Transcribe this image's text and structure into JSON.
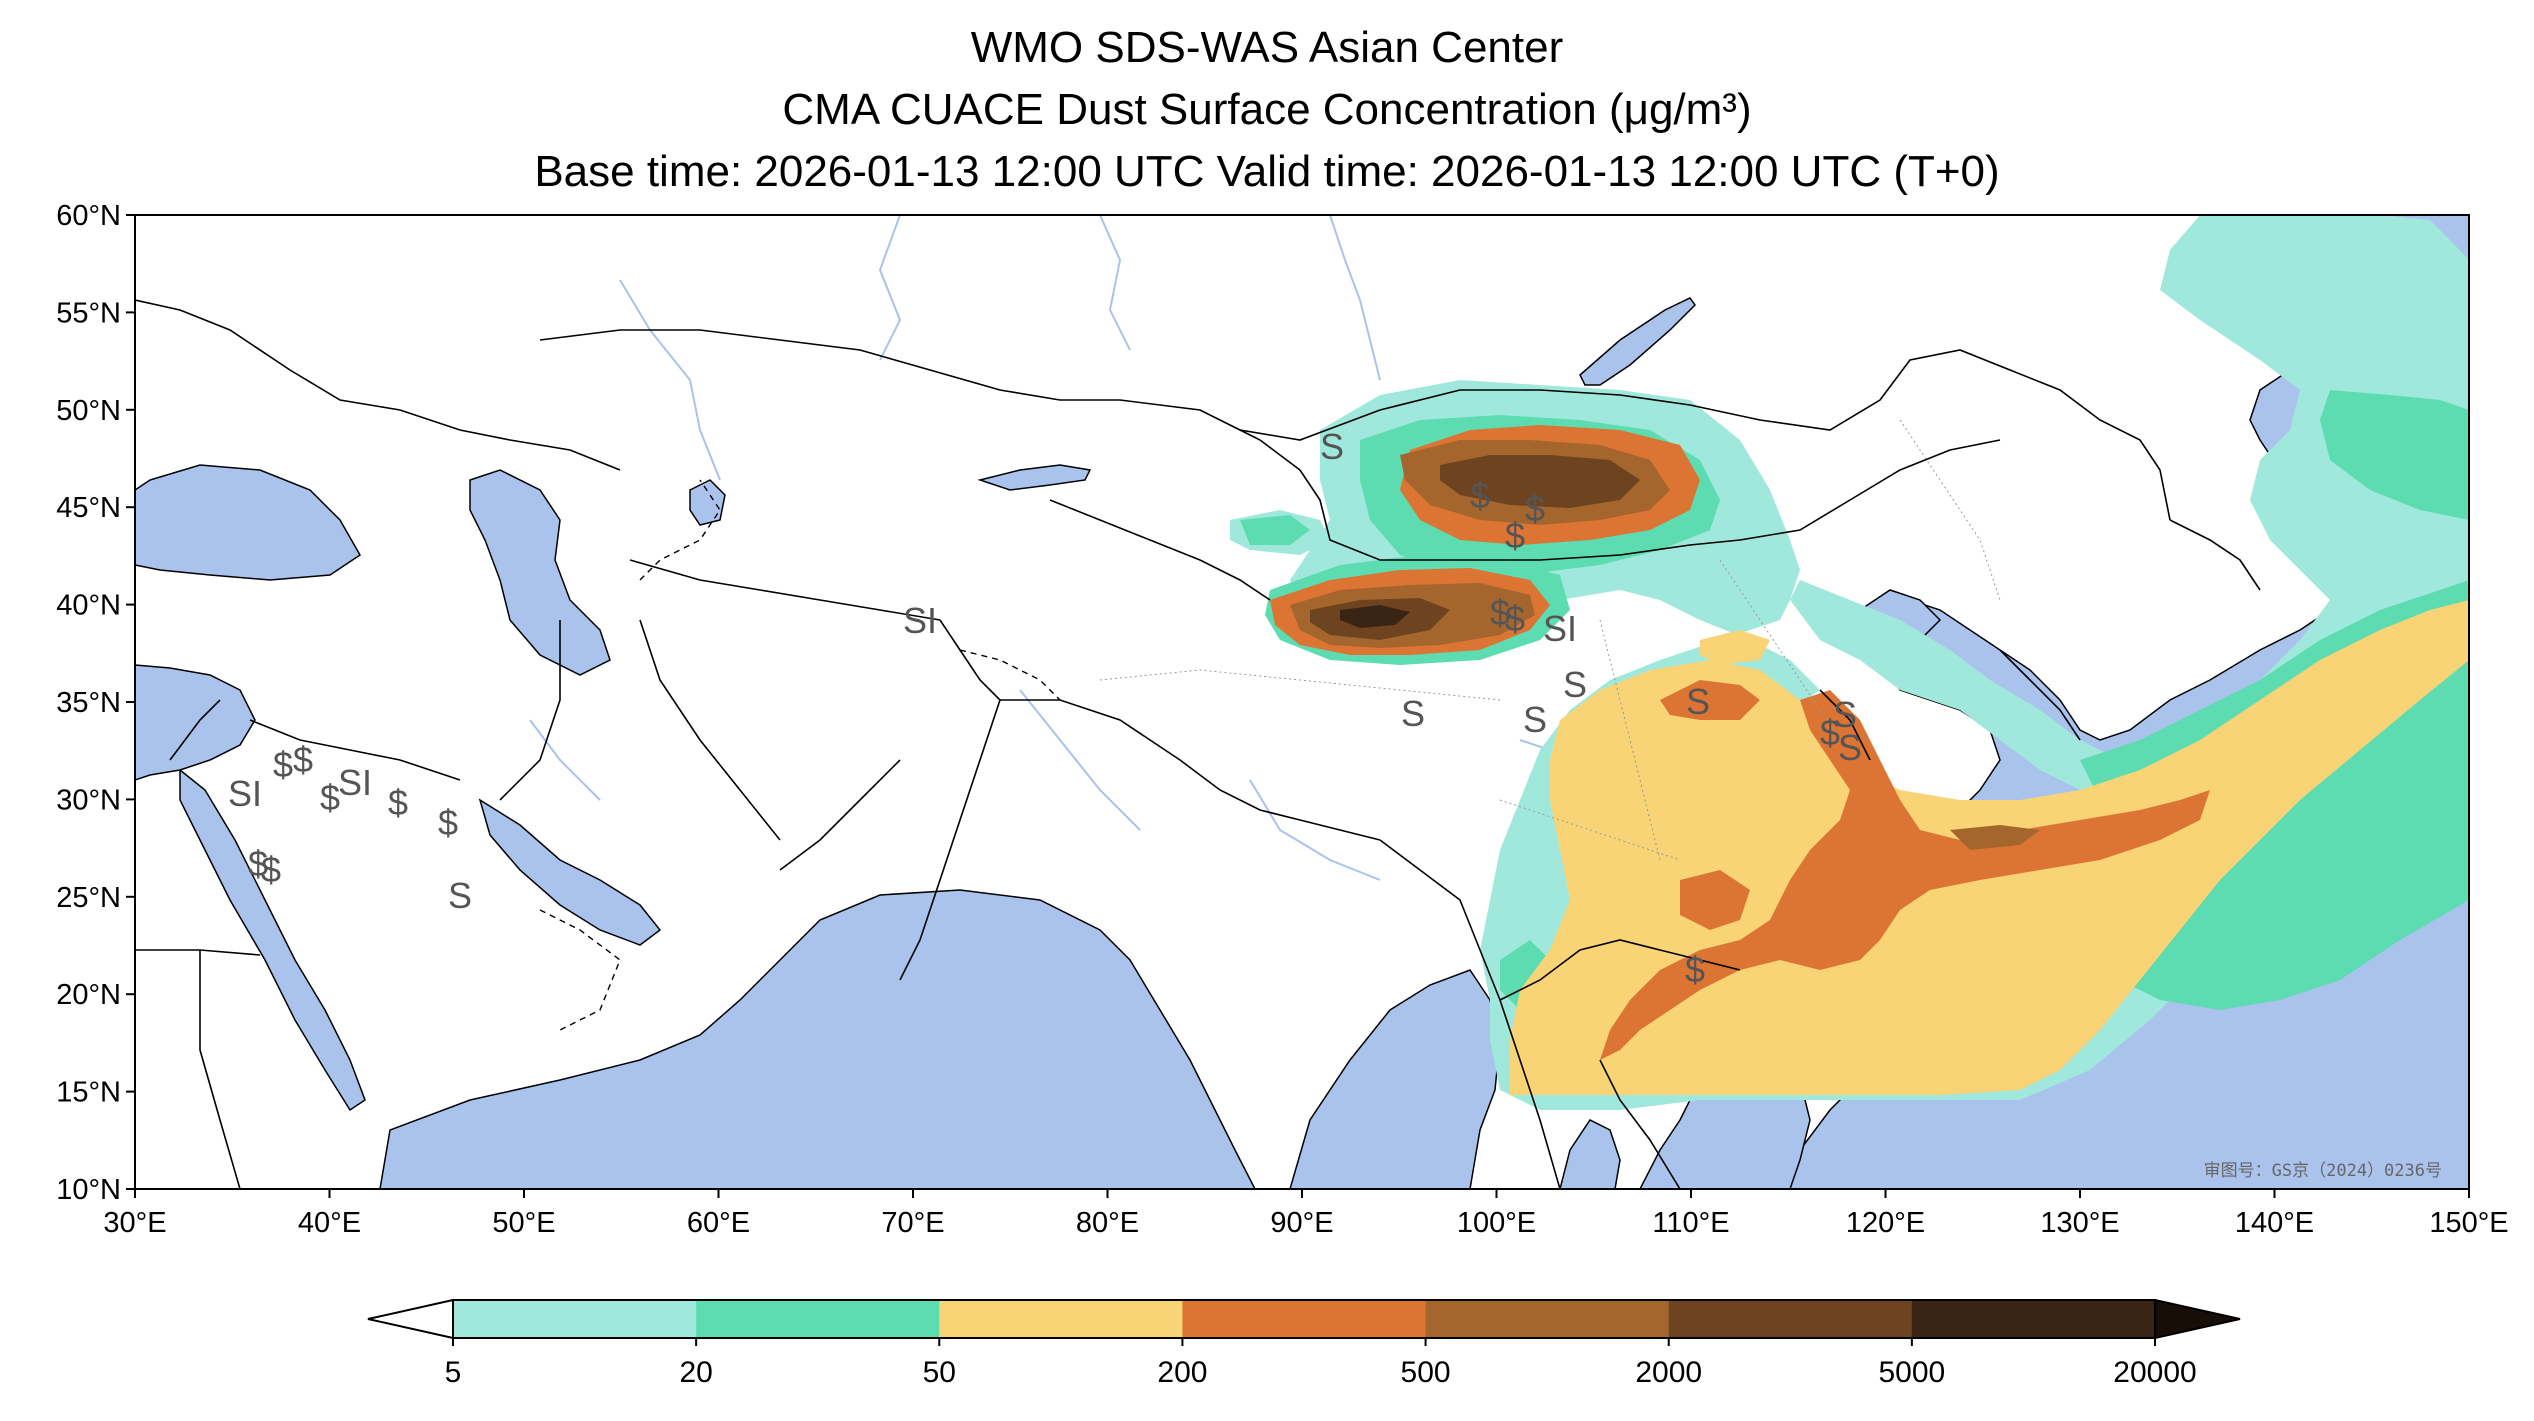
{
  "title": {
    "line1": "WMO SDS-WAS Asian Center",
    "line2": "CMA CUACE Dust Surface Concentration (μg/m³)",
    "line3": "Base time: 2026-01-13 12:00 UTC Valid time: 2026-01-13 12:00 UTC (T+0)"
  },
  "map": {
    "lon_range": [
      30,
      150
    ],
    "lat_range": [
      10,
      60
    ],
    "lon_ticks": [
      "30°E",
      "40°E",
      "50°E",
      "60°E",
      "70°E",
      "80°E",
      "90°E",
      "100°E",
      "110°E",
      "120°E",
      "130°E",
      "140°E",
      "150°E"
    ],
    "lat_ticks": [
      "60°N",
      "55°N",
      "50°N",
      "45°N",
      "40°N",
      "35°N",
      "30°N",
      "25°N",
      "20°N",
      "15°N",
      "10°N"
    ],
    "colors": {
      "ocean": "#a9c3ec",
      "land": "#ffffff",
      "border": "#000000",
      "river": "#a9c3ec"
    },
    "approval_number": "审图号：GS京（2024）0236号",
    "station_marks": [
      "S",
      "S",
      "S",
      "S",
      "S",
      "S",
      "S",
      "S",
      "SI",
      "SI",
      "SI",
      "SI",
      "$",
      "$",
      "$",
      "$",
      "$",
      "$",
      "$",
      "$",
      "$",
      "$",
      "$",
      "$",
      "$",
      "$"
    ]
  },
  "colorbar": {
    "labels": [
      "5",
      "20",
      "50",
      "200",
      "500",
      "2000",
      "5000",
      "20000"
    ],
    "colors": [
      "#a0e8dc",
      "#5cdcb0",
      "#f8d476",
      "#dc7434",
      "#a4662c",
      "#6e4420",
      "#3a2414",
      "#180e08"
    ]
  }
}
